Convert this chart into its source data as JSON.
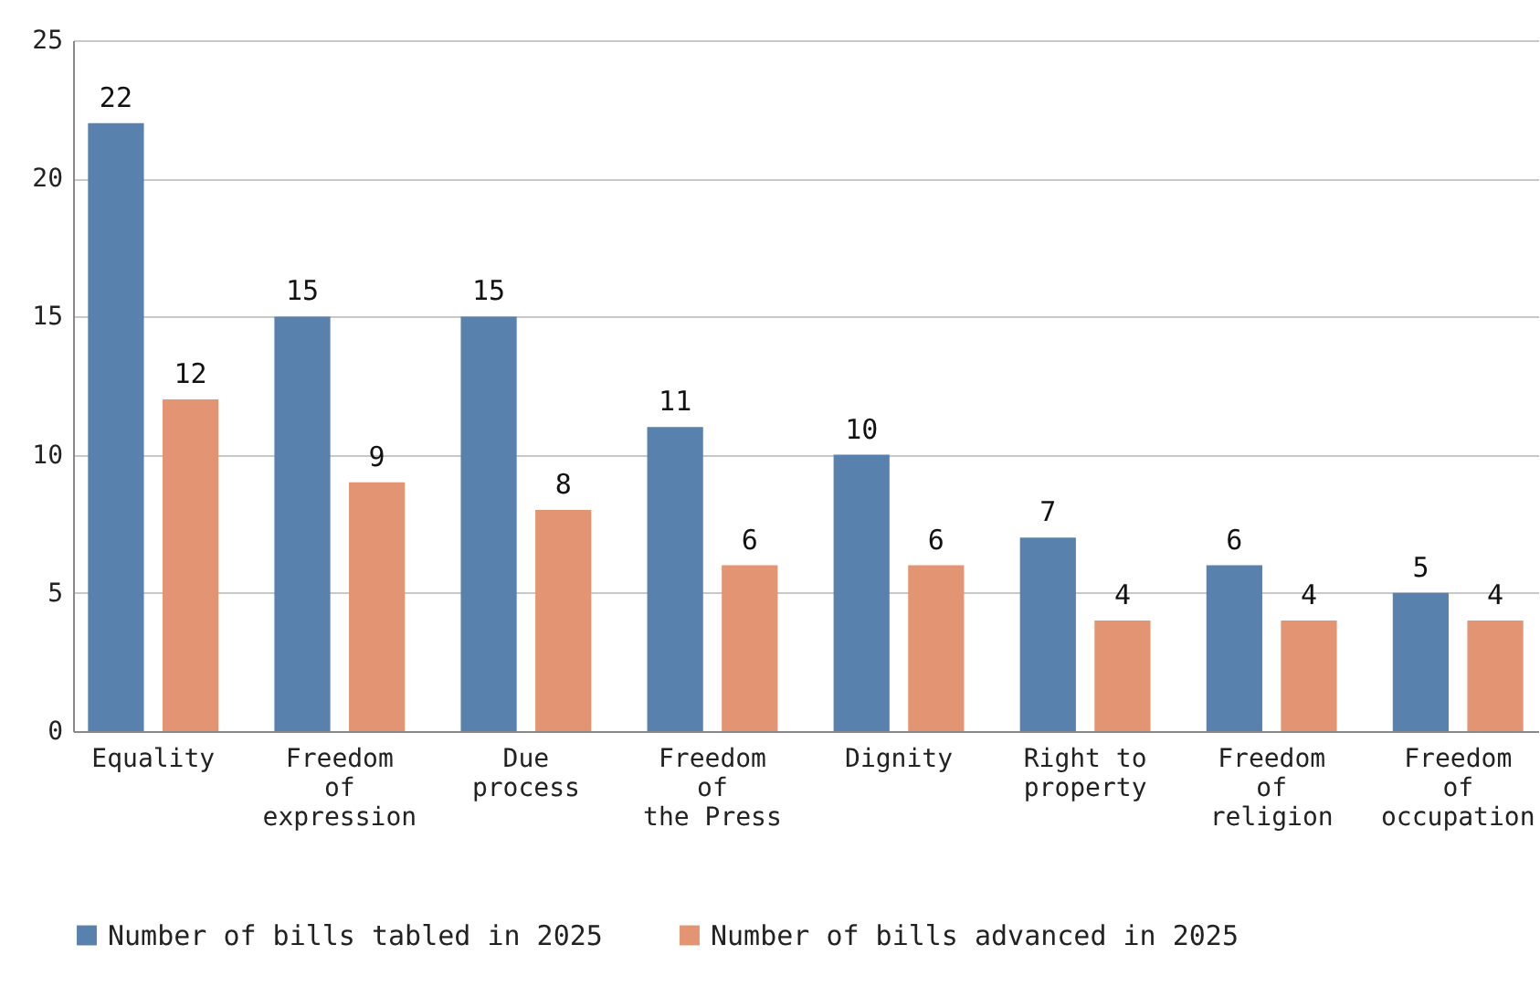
{
  "chart_data": {
    "type": "bar",
    "categories": [
      "Equality",
      "Freedom\nof\nexpression",
      "Due\nprocess",
      "Freedom\nof\nthe Press",
      "Dignity",
      "Right to\nproperty",
      "Freedom\nof\nreligion",
      "Freedom\nof\noccupation"
    ],
    "series": [
      {
        "name": "Number of bills tabled in 2025",
        "color": "#5882ad",
        "values": [
          22,
          15,
          15,
          11,
          10,
          7,
          6,
          5
        ]
      },
      {
        "name": "Number of bills advanced in 2025",
        "color": "#e39472",
        "values": [
          12,
          9,
          8,
          6,
          6,
          4,
          4,
          4
        ]
      }
    ],
    "ylim": [
      0,
      25
    ],
    "yticks": [
      0,
      5,
      10,
      15,
      20,
      25
    ],
    "grid": "y",
    "legend": "bottom",
    "data_labels": true
  }
}
